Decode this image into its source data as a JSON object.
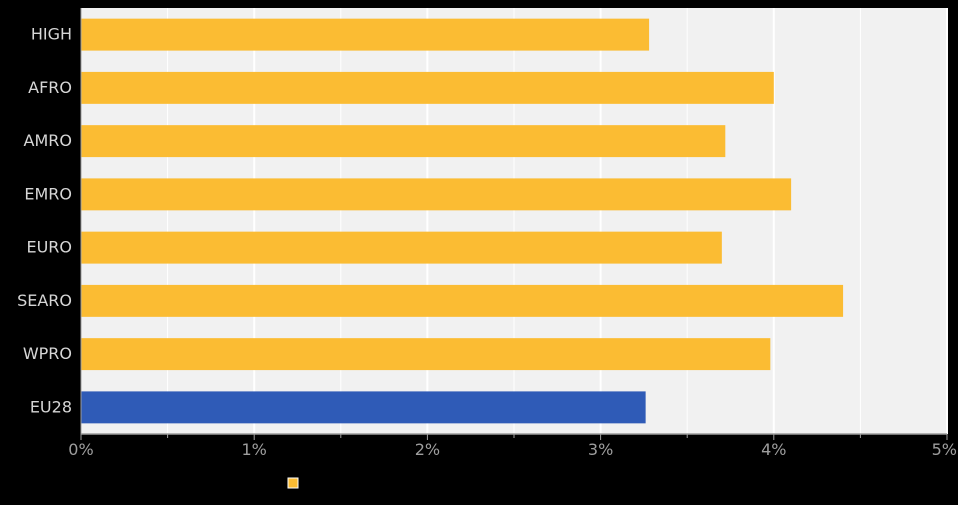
{
  "chart_data": {
    "type": "bar",
    "orientation": "horizontal",
    "categories": [
      "HIGH",
      "AFRO",
      "AMRO",
      "EMRO",
      "EURO",
      "SEARO",
      "WPRO",
      "EU28"
    ],
    "values": [
      3.28,
      4.0,
      3.72,
      4.1,
      3.7,
      4.4,
      3.98,
      3.26
    ],
    "bar_colors": [
      "#fbbc33",
      "#fbbc33",
      "#fbbc33",
      "#fbbc33",
      "#fbbc33",
      "#fbbc33",
      "#fbbc33",
      "#2f5bb7"
    ],
    "xlim": [
      0,
      5
    ],
    "x_ticks": [
      0,
      1,
      2,
      3,
      4,
      5
    ],
    "x_tick_labels": [
      "0%",
      "1%",
      "2%",
      "3%",
      "4%",
      "5%"
    ],
    "unit": "%",
    "title": "",
    "xlabel": "",
    "ylabel": "",
    "grid": true,
    "legend_position": "bottom-left",
    "colors": {
      "background": "#000000",
      "plot_background": "#f1f1f1",
      "grid": "#ffffff",
      "axis": "#9e9e9e",
      "tick_label": "#9e9e9e",
      "category_label": "#d6d6d6",
      "highlight": "#2f5bb7",
      "default": "#fbbc33",
      "legend_swatch": "#fbbc33"
    }
  }
}
